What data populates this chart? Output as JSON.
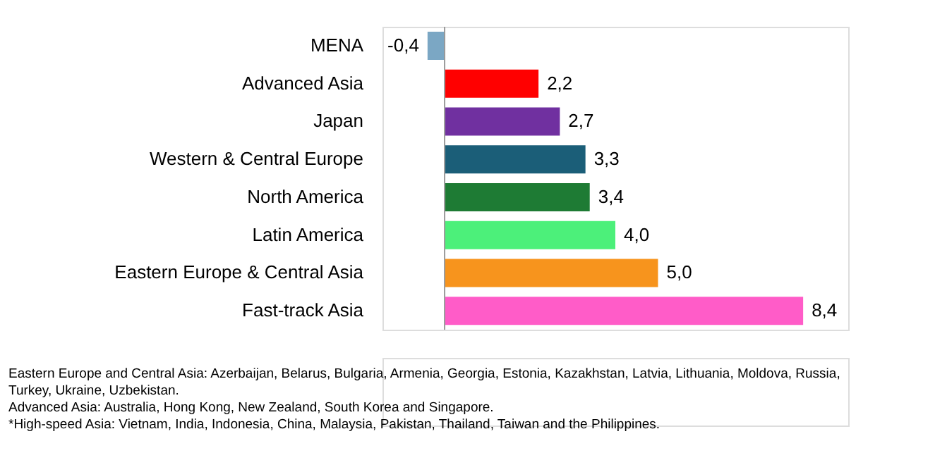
{
  "chart_data": {
    "type": "bar",
    "orientation": "horizontal",
    "categories": [
      "MENA",
      "Advanced Asia",
      "Japan",
      "Western & Central Europe",
      "North America",
      "Latin America",
      "Eastern Europe & Central Asia",
      "Fast-track Asia"
    ],
    "values": [
      -0.4,
      2.2,
      2.7,
      3.3,
      3.4,
      4.0,
      5.0,
      8.4
    ],
    "value_labels": [
      "-0,4",
      "2,2",
      "2,7",
      "3,3",
      "3,4",
      "4,0",
      "5,0",
      "8,4"
    ],
    "colors": [
      "#7ba7c4",
      "#ff0000",
      "#7030a0",
      "#1b5e78",
      "#1e7b34",
      "#4cf07a",
      "#f7941d",
      "#ff5cc8"
    ],
    "annotations": [
      "Eastern Europe and Central Asia: Azerbaijan, Belarus, Bulgaria, Armenia, Georgia, Estonia, Kazakhstan, Latvia, Lithuania, Moldova, Russia, Turkey, Ukraine, Uzbekistan.",
      "Advanced Asia: Australia, Hong Kong, New Zealand, South Korea and Singapore.",
      "*High-speed Asia: Vietnam, India, Indonesia, China, Malaysia, Pakistan, Thailand, Taiwan and the Philippines."
    ]
  }
}
